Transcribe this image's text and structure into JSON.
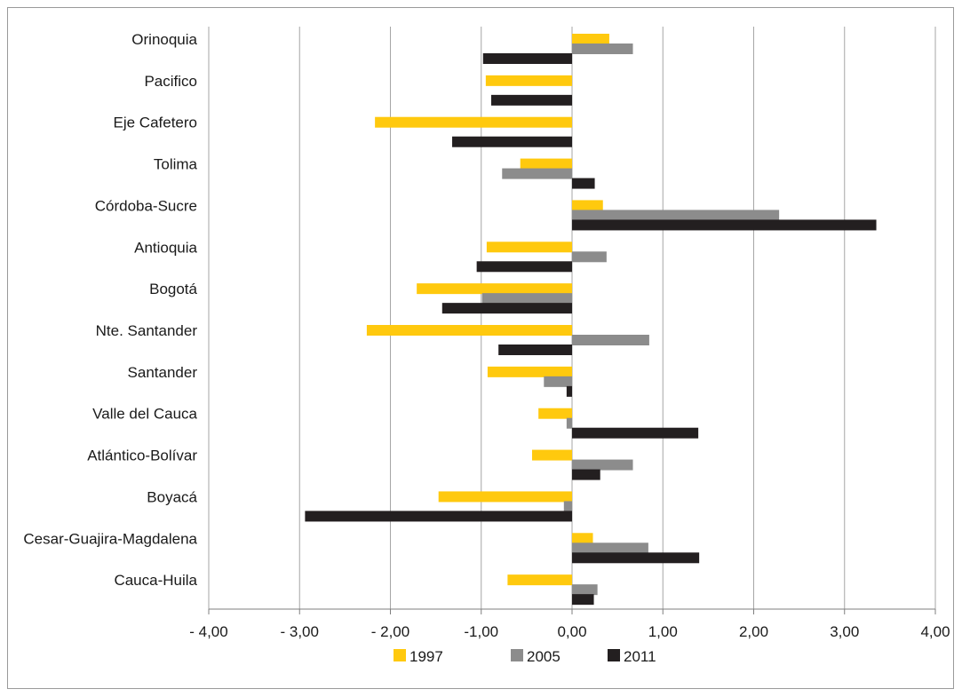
{
  "chart_data": {
    "type": "bar",
    "orientation": "horizontal",
    "title": "",
    "xlabel": "",
    "ylabel": "",
    "xlim": [
      -4,
      4
    ],
    "x_ticks": [
      -4,
      -3,
      -2,
      -1,
      0,
      1,
      2,
      3,
      4
    ],
    "x_tick_labels": [
      "- 4,00",
      "- 3,00",
      "- 2,00",
      "-1,00",
      "0,00",
      "1,00",
      "2,00",
      "3,00",
      "4,00"
    ],
    "grid": true,
    "legend_position": "bottom",
    "categories": [
      "Orinoquia",
      "Pacifico",
      "Eje Cafetero",
      "Tolima",
      "Córdoba-Sucre",
      "Antioquia",
      "Bogotá",
      "Nte. Santander",
      "Santander",
      "Valle del Cauca",
      "Atlántico-Bolívar",
      "Boyacá",
      "Cesar-Guajira-Magdalena",
      "Cauca-Huila"
    ],
    "series": [
      {
        "name": "1997",
        "color": "#ffc90e",
        "values": [
          0.41,
          -0.95,
          -2.17,
          -0.57,
          0.34,
          -0.94,
          -1.71,
          -2.26,
          -0.93,
          -0.37,
          -0.44,
          -1.47,
          0.23,
          -0.71
        ]
      },
      {
        "name": "2005",
        "color": "#8c8c8c",
        "values": [
          0.67,
          0.0,
          0.0,
          -0.77,
          2.28,
          0.38,
          -0.99,
          0.85,
          -0.31,
          -0.06,
          0.67,
          -0.09,
          0.84,
          0.28
        ]
      },
      {
        "name": "2011",
        "color": "#231f20",
        "values": [
          -0.98,
          -0.89,
          -1.32,
          0.25,
          3.35,
          -1.05,
          -1.43,
          -0.81,
          -0.06,
          1.39,
          0.31,
          -2.94,
          1.4,
          0.24
        ]
      }
    ]
  }
}
